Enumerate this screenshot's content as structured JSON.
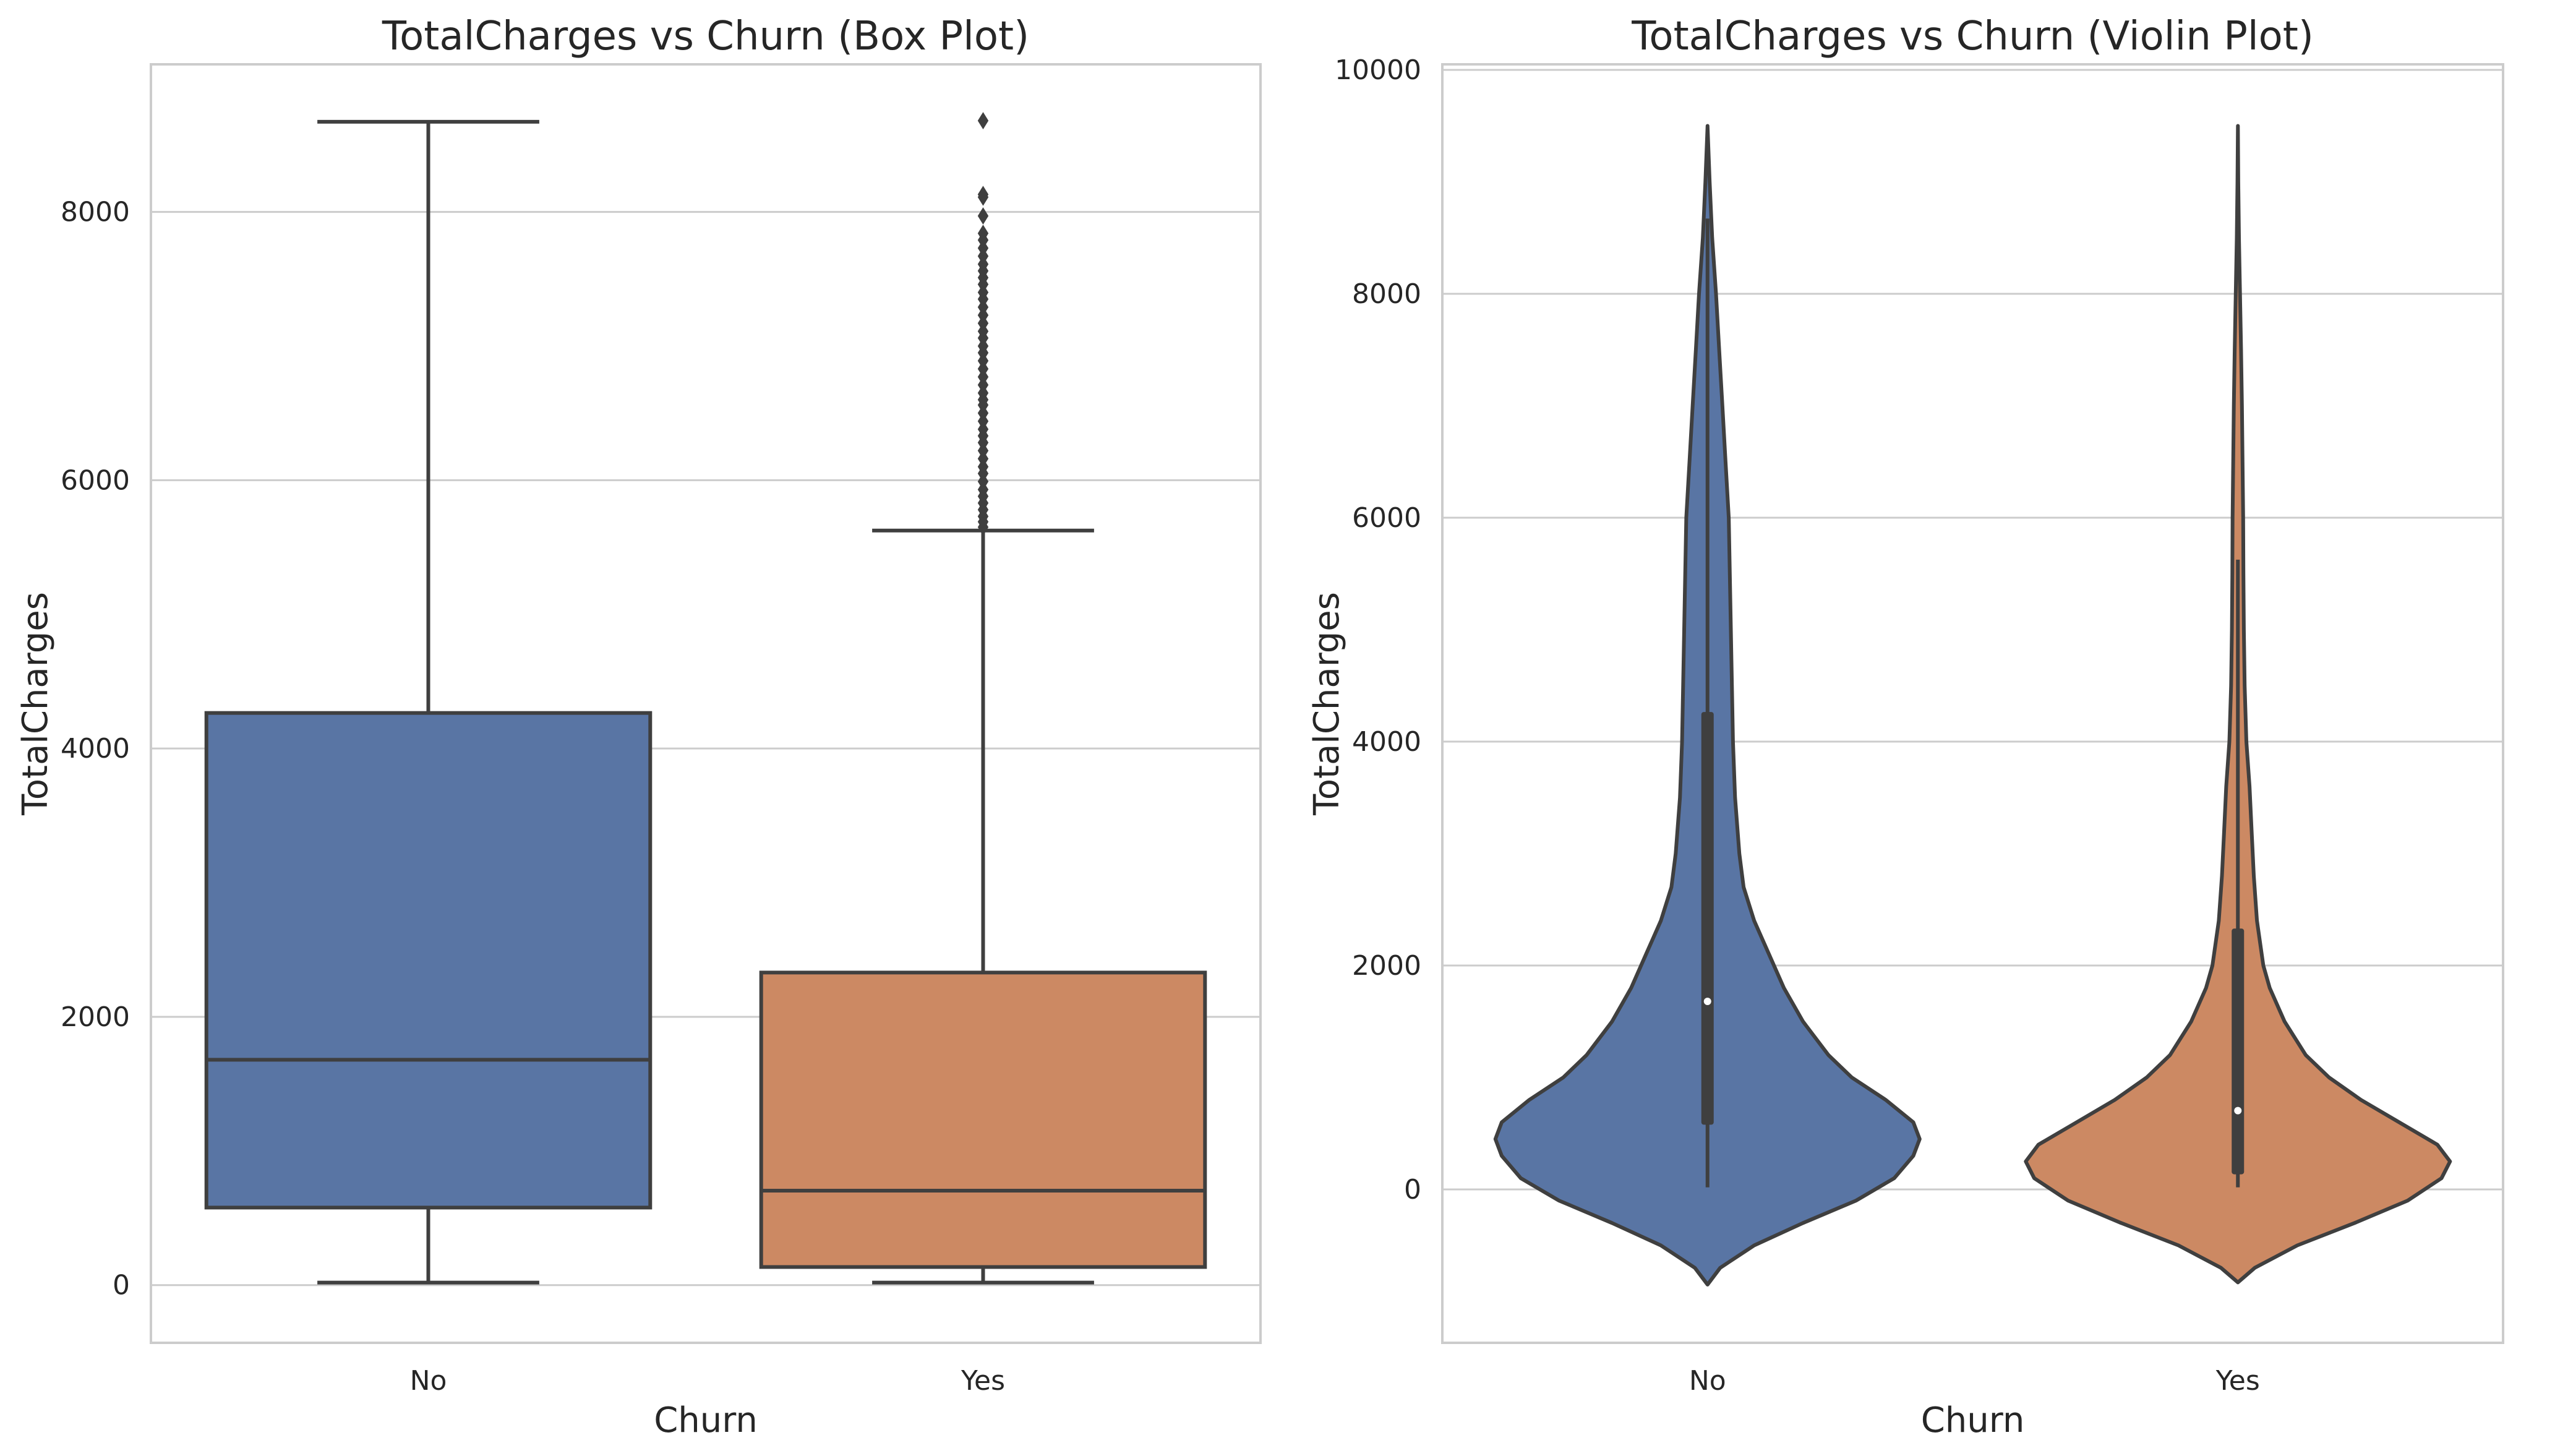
{
  "chart_data": [
    {
      "type": "box",
      "title": "TotalCharges vs Churn (Box Plot)",
      "xlabel": "Churn",
      "ylabel": "TotalCharges",
      "ylim": [
        -430,
        9100
      ],
      "yticks": [
        0,
        2000,
        4000,
        6000,
        8000
      ],
      "ytick_labels": [
        "0",
        "2000",
        "4000",
        "6000",
        "8000"
      ],
      "grid": "horizontal",
      "categories": [
        "No",
        "Yes"
      ],
      "colors": [
        "#5975a4",
        "#cc8963"
      ],
      "boxes": [
        {
          "category": "No",
          "whisker_low": 19,
          "q1": 578,
          "median": 1680,
          "q3": 4265,
          "whisker_high": 8672,
          "outliers": []
        },
        {
          "category": "Yes",
          "whisker_low": 19,
          "q1": 135,
          "median": 704,
          "q3": 2330,
          "whisker_high": 5625,
          "outliers": [
            5650,
            5690,
            5730,
            5780,
            5830,
            5880,
            5930,
            5990,
            6050,
            6100,
            6160,
            6220,
            6280,
            6330,
            6380,
            6440,
            6500,
            6560,
            6600,
            6650,
            6710,
            6770,
            6830,
            6890,
            6950,
            7000,
            7060,
            7110,
            7170,
            7230,
            7290,
            7350,
            7400,
            7460,
            7510,
            7560,
            7610,
            7670,
            7730,
            7790,
            7840,
            7970,
            8110,
            8130,
            8680
          ]
        }
      ]
    },
    {
      "type": "violin",
      "title": "TotalCharges vs Churn (Violin Plot)",
      "xlabel": "Churn",
      "ylabel": "TotalCharges",
      "ylim": [
        -1370,
        10050
      ],
      "yticks": [
        0,
        2000,
        4000,
        6000,
        8000,
        10000
      ],
      "ytick_labels": [
        "0",
        "2000",
        "4000",
        "6000",
        "8000",
        "10000"
      ],
      "grid": "horizontal",
      "categories": [
        "No",
        "Yes"
      ],
      "colors": [
        "#5975a4",
        "#cc8963"
      ],
      "violins": [
        {
          "category": "No",
          "median": 1680,
          "q1": 578,
          "q3": 4265,
          "whisker_low": 19,
          "whisker_high": 8672,
          "density": [
            [
              -850,
              0.0
            ],
            [
              -700,
              0.06
            ],
            [
              -500,
              0.22
            ],
            [
              -300,
              0.45
            ],
            [
              -100,
              0.7
            ],
            [
              100,
              0.88
            ],
            [
              300,
              0.97
            ],
            [
              450,
              1.0
            ],
            [
              600,
              0.97
            ],
            [
              800,
              0.84
            ],
            [
              1000,
              0.68
            ],
            [
              1200,
              0.57
            ],
            [
              1500,
              0.45
            ],
            [
              1800,
              0.36
            ],
            [
              2100,
              0.29
            ],
            [
              2400,
              0.22
            ],
            [
              2700,
              0.17
            ],
            [
              3000,
              0.15
            ],
            [
              3500,
              0.13
            ],
            [
              4000,
              0.12
            ],
            [
              4500,
              0.115
            ],
            [
              5000,
              0.11
            ],
            [
              5500,
              0.105
            ],
            [
              6000,
              0.1
            ],
            [
              6500,
              0.085
            ],
            [
              7000,
              0.07
            ],
            [
              7500,
              0.055
            ],
            [
              8000,
              0.04
            ],
            [
              8500,
              0.022
            ],
            [
              9000,
              0.01
            ],
            [
              9500,
              0.0
            ]
          ]
        },
        {
          "category": "Yes",
          "median": 704,
          "q1": 135,
          "q3": 2330,
          "whisker_low": 19,
          "whisker_high": 5625,
          "density": [
            [
              -830,
              0.0
            ],
            [
              -700,
              0.08
            ],
            [
              -500,
              0.28
            ],
            [
              -300,
              0.55
            ],
            [
              -100,
              0.8
            ],
            [
              100,
              0.96
            ],
            [
              250,
              1.0
            ],
            [
              400,
              0.94
            ],
            [
              600,
              0.76
            ],
            [
              800,
              0.58
            ],
            [
              1000,
              0.43
            ],
            [
              1200,
              0.32
            ],
            [
              1500,
              0.22
            ],
            [
              1800,
              0.15
            ],
            [
              2000,
              0.12
            ],
            [
              2400,
              0.09
            ],
            [
              2800,
              0.075
            ],
            [
              3200,
              0.065
            ],
            [
              3600,
              0.055
            ],
            [
              4000,
              0.04
            ],
            [
              4500,
              0.032
            ],
            [
              5000,
              0.028
            ],
            [
              5500,
              0.026
            ],
            [
              6000,
              0.025
            ],
            [
              6500,
              0.022
            ],
            [
              7000,
              0.019
            ],
            [
              7500,
              0.015
            ],
            [
              8000,
              0.01
            ],
            [
              8500,
              0.005
            ],
            [
              9000,
              0.002
            ],
            [
              9500,
              0.0
            ]
          ]
        }
      ]
    }
  ]
}
